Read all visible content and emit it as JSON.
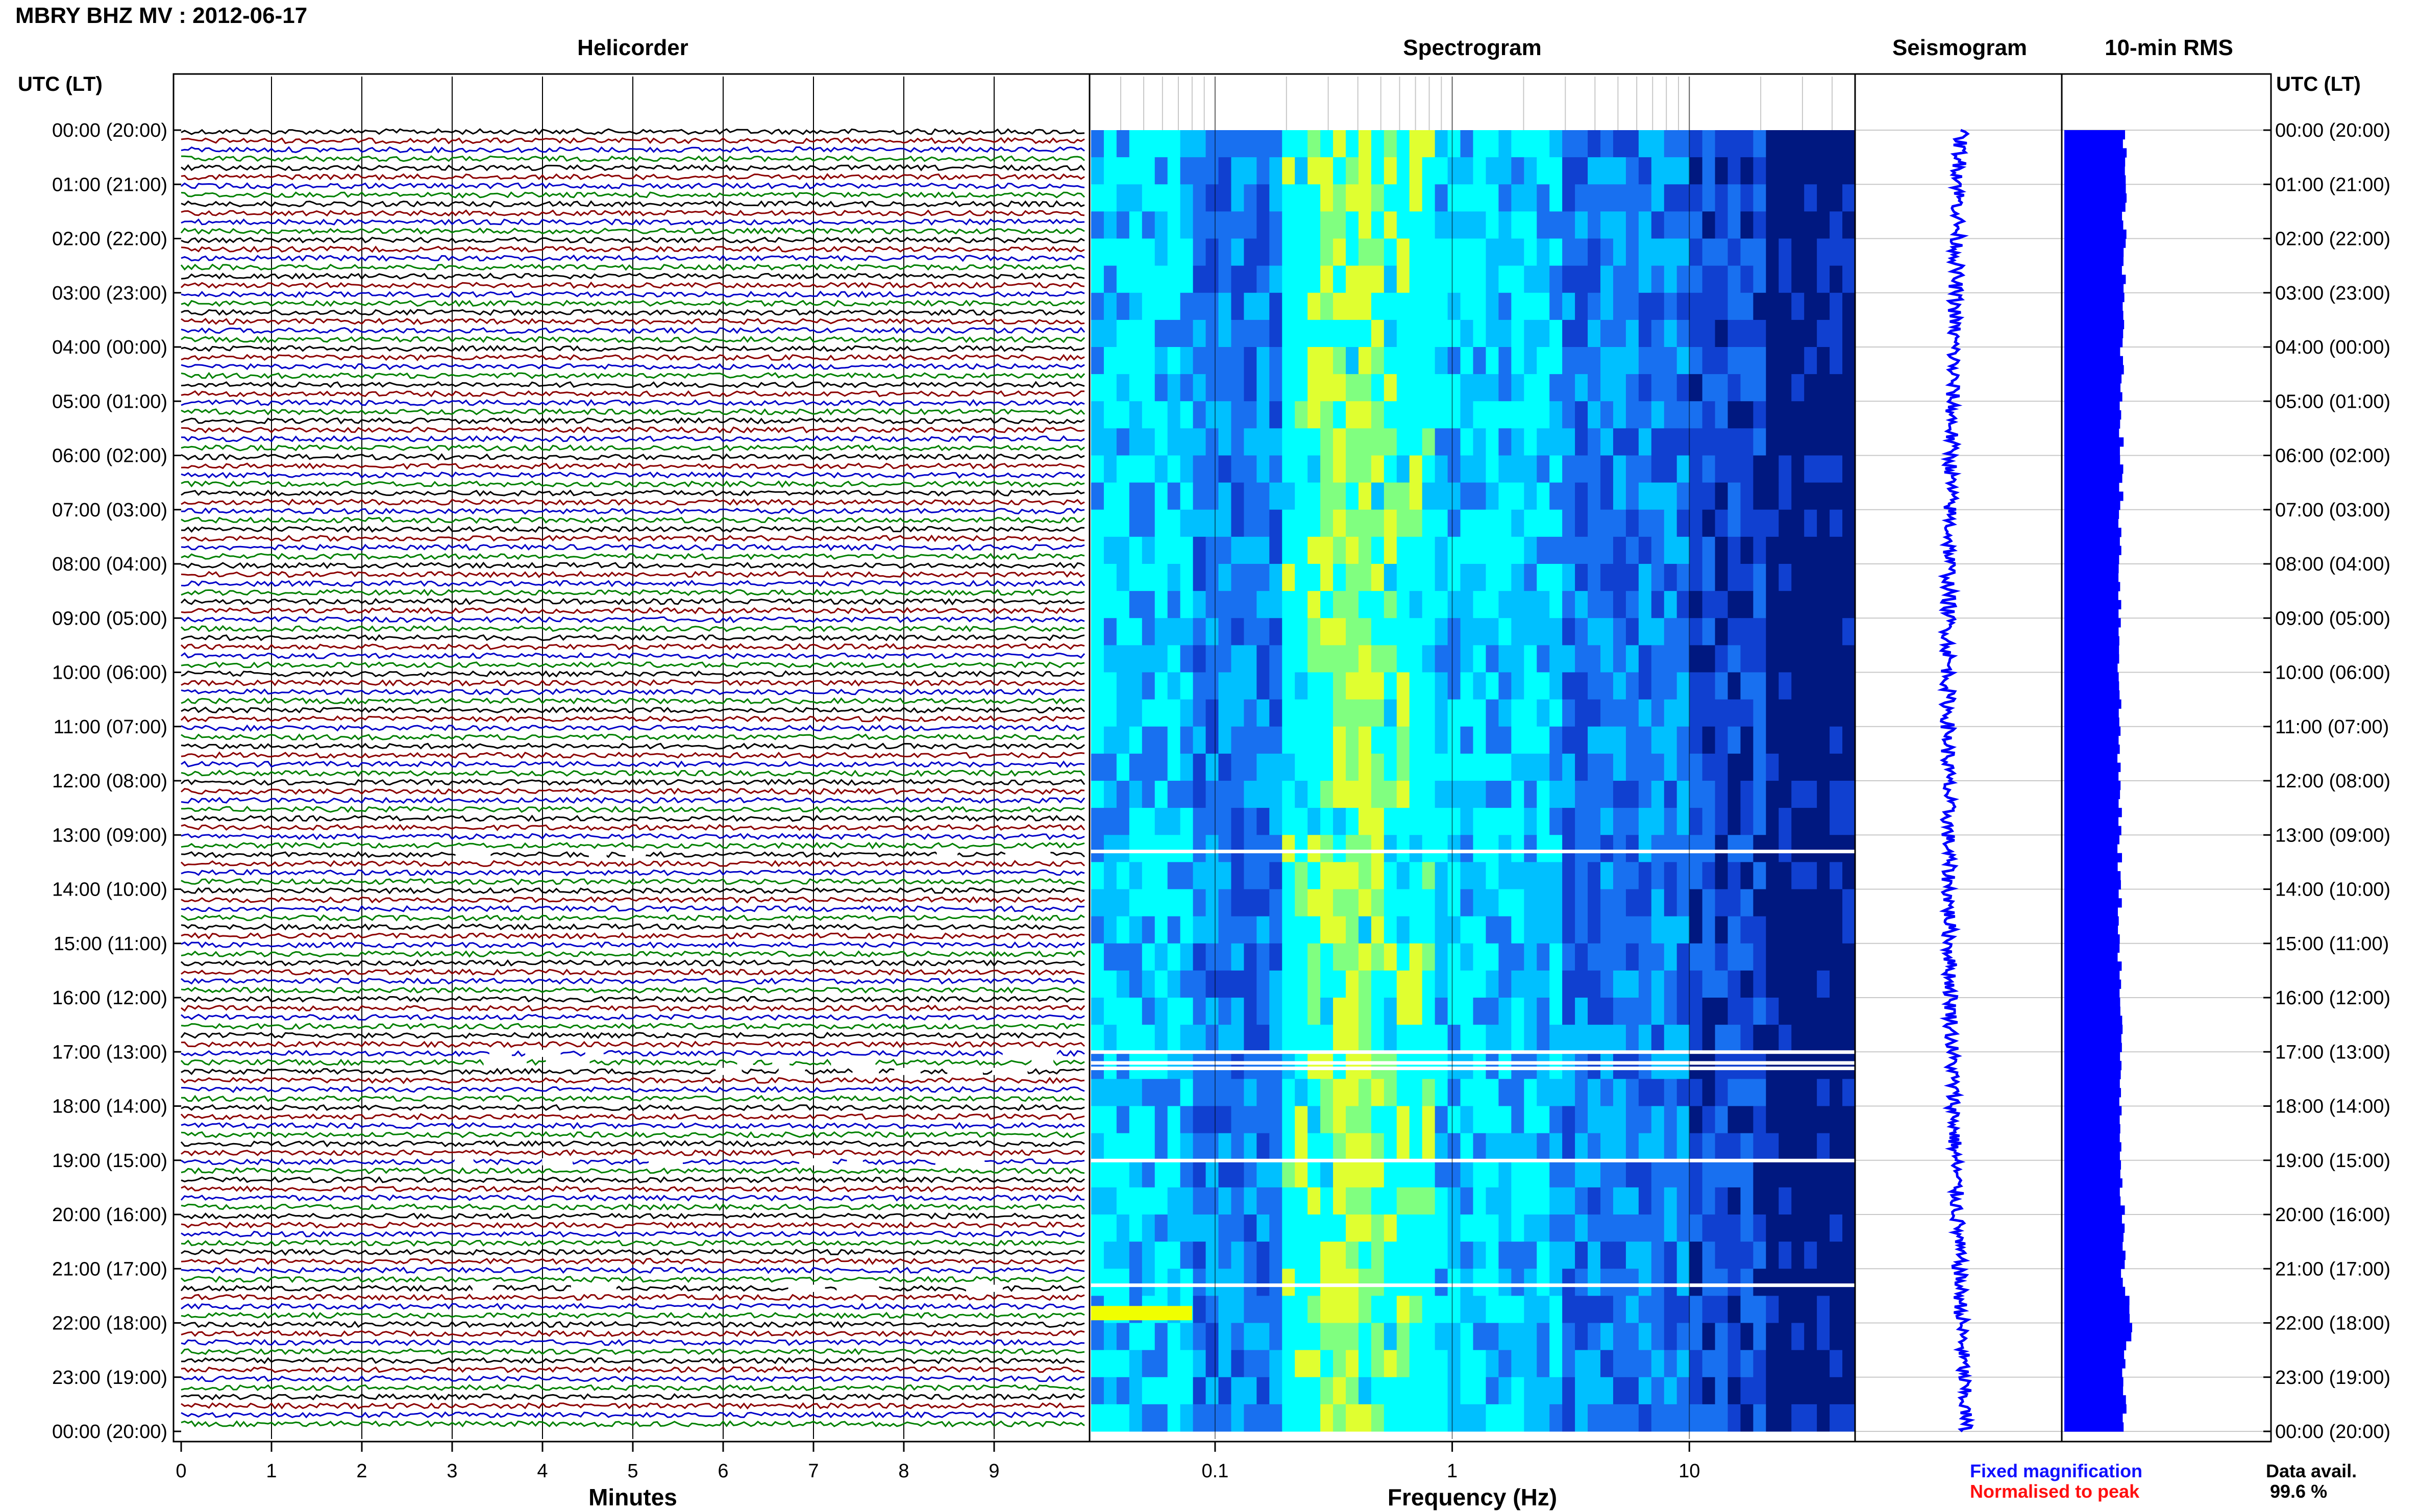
{
  "title": "MBRY BHZ MV : 2012-06-17",
  "panels": {
    "helicorder": "Helicorder",
    "spectrogram": "Spectrogram",
    "seismogram": "Seismogram",
    "rms": "10-min RMS"
  },
  "axis_header": "UTC (LT)",
  "time_labels": [
    "00:00 (20:00)",
    "01:00 (21:00)",
    "02:00 (22:00)",
    "03:00 (23:00)",
    "04:00 (00:00)",
    "05:00 (01:00)",
    "06:00 (02:00)",
    "07:00 (03:00)",
    "08:00 (04:00)",
    "09:00 (05:00)",
    "10:00 (06:00)",
    "11:00 (07:00)",
    "12:00 (08:00)",
    "13:00 (09:00)",
    "14:00 (10:00)",
    "15:00 (11:00)",
    "16:00 (12:00)",
    "17:00 (13:00)",
    "18:00 (14:00)",
    "19:00 (15:00)",
    "20:00 (16:00)",
    "21:00 (17:00)",
    "22:00 (18:00)",
    "23:00 (19:00)",
    "00:00 (20:00)"
  ],
  "legend": {
    "fixed": "Fixed magnification",
    "normalised": "Normalised to peak",
    "fixed_color": "#1010ff",
    "normalised_color": "#ff1010",
    "avail_label": "Data avail.",
    "avail_value": "99.6 %"
  },
  "chart_data": [
    {
      "type": "line",
      "panel": "Helicorder",
      "xlabel": "Minutes",
      "ylabel": "UTC (LT)",
      "xticks": [
        "0",
        "1",
        "2",
        "3",
        "4",
        "5",
        "6",
        "7",
        "8",
        "9"
      ],
      "xlim": [
        0,
        10
      ],
      "rows_per_hour": 6,
      "trace_colors": [
        "#000000",
        "#8b0000",
        "#0000c8",
        "#008000"
      ],
      "gaps_utc_hours": [
        13.3,
        17.0,
        17.2,
        17.3,
        19.0,
        21.3
      ]
    },
    {
      "type": "heatmap",
      "panel": "Spectrogram",
      "xlabel": "Frequency (Hz)",
      "xscale": "log",
      "xlim": [
        0.03,
        50
      ],
      "xticks": [
        "0.1",
        "1",
        "10"
      ],
      "peak_band_hz": [
        0.2,
        0.6
      ],
      "highlight": {
        "utc_hour": 21.8,
        "freq_hz": [
          0.03,
          0.08
        ],
        "color": "#f0ff00"
      },
      "palette": [
        "#00ffff",
        "#00c0ff",
        "#1870f0",
        "#1040d0",
        "#001880",
        "#80ff80",
        "#e0ff30"
      ]
    },
    {
      "type": "line",
      "panel": "Seismogram",
      "series_color": "#0000ff"
    },
    {
      "type": "bar",
      "panel": "10-min RMS",
      "series_color": "#0000ff",
      "grid": true
    }
  ]
}
